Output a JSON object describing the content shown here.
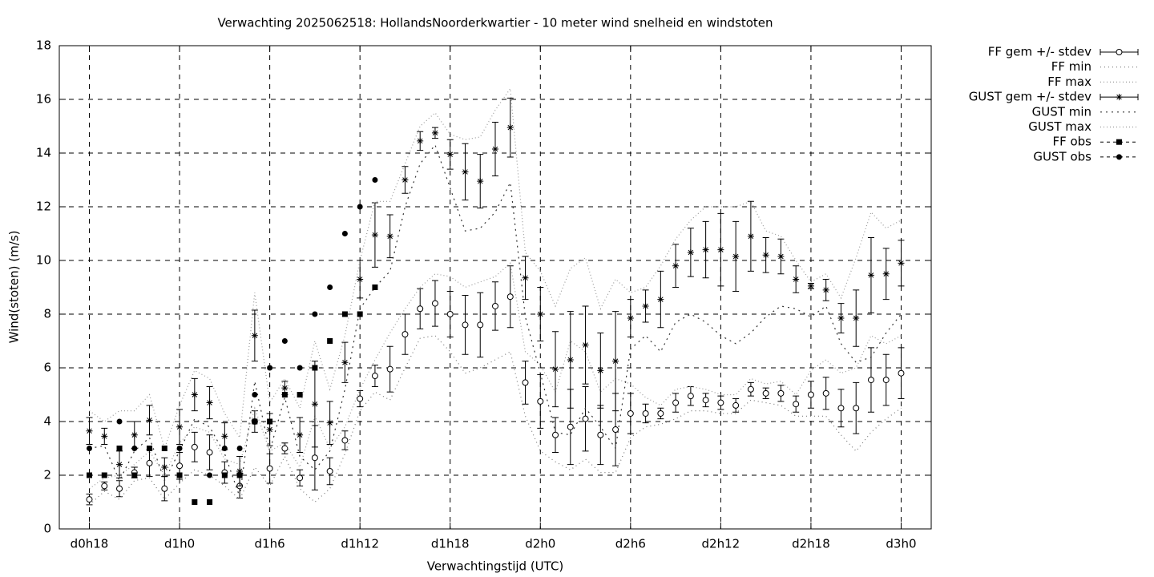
{
  "chart_data": {
    "type": "errorbar",
    "title": "Verwachting 2025062518: HollandsNoorderkwartier - 10 meter wind snelheid en windstoten",
    "xlabel": "Verwachtingstijd (UTC)",
    "ylabel": "Wind(stoten) (m/s)",
    "xlim": [
      16,
      74
    ],
    "ylim": [
      0,
      18
    ],
    "xticks": [
      {
        "value": 18,
        "label": "d0h18"
      },
      {
        "value": 24,
        "label": "d1h0"
      },
      {
        "value": 30,
        "label": "d1h6"
      },
      {
        "value": 36,
        "label": "d1h12"
      },
      {
        "value": 42,
        "label": "d1h18"
      },
      {
        "value": 48,
        "label": "d2h0"
      },
      {
        "value": 54,
        "label": "d2h6"
      },
      {
        "value": 60,
        "label": "d2h12"
      },
      {
        "value": 66,
        "label": "d2h18"
      },
      {
        "value": 72,
        "label": "d3h0"
      }
    ],
    "yticks": [
      0,
      2,
      4,
      6,
      8,
      10,
      12,
      14,
      16,
      18
    ],
    "grid": true,
    "legend": "outside-right-top",
    "x": [
      18,
      19,
      20,
      21,
      22,
      23,
      24,
      25,
      26,
      27,
      28,
      29,
      30,
      31,
      32,
      33,
      34,
      35,
      36,
      37,
      38,
      39,
      40,
      41,
      42,
      43,
      44,
      45,
      46,
      47,
      48,
      49,
      50,
      51,
      52,
      53,
      54,
      55,
      56,
      57,
      58,
      59,
      60,
      61,
      62,
      63,
      64,
      65,
      66,
      67,
      68,
      69,
      70,
      71,
      72
    ],
    "series": [
      {
        "name": "FF gem +/- stdev",
        "style": "errorbar",
        "marker": "open-circle",
        "color": "#000000",
        "values": [
          1.1,
          1.6,
          1.5,
          2.1,
          2.45,
          1.5,
          2.35,
          3.05,
          2.85,
          2.1,
          1.6,
          4.0,
          2.25,
          3.0,
          1.9,
          2.65,
          2.15,
          3.3,
          4.85,
          5.7,
          5.95,
          7.25,
          8.2,
          8.4,
          8.0,
          7.6,
          7.6,
          8.3,
          8.65,
          5.45,
          4.75,
          3.5,
          3.8,
          4.1,
          3.5,
          3.7,
          4.3,
          4.3,
          4.3,
          4.7,
          4.95,
          4.8,
          4.7,
          4.6,
          5.2,
          5.05,
          5.05,
          4.65,
          5.0,
          5.05,
          4.5,
          4.5,
          5.55,
          5.55,
          5.8
        ],
        "errors": [
          0.2,
          0.15,
          0.3,
          0.2,
          0.5,
          0.45,
          0.5,
          0.55,
          0.65,
          0.4,
          0.45,
          0.4,
          0.55,
          0.2,
          0.3,
          1.2,
          0.5,
          0.35,
          0.3,
          0.4,
          0.85,
          0.75,
          0.75,
          0.85,
          0.85,
          1.1,
          1.2,
          0.9,
          1.15,
          0.8,
          1.0,
          0.65,
          1.4,
          1.2,
          1.1,
          1.35,
          0.75,
          0.35,
          0.2,
          0.35,
          0.35,
          0.25,
          0.25,
          0.25,
          0.25,
          0.2,
          0.3,
          0.3,
          0.5,
          0.6,
          0.7,
          0.95,
          1.2,
          0.95,
          0.95
        ]
      },
      {
        "name": "FF min",
        "style": "line",
        "dash": "1 4",
        "color": "#777777",
        "values": [
          0.9,
          1.4,
          1.1,
          1.8,
          1.9,
          1.1,
          1.7,
          2.2,
          2.0,
          1.6,
          1.1,
          2.3,
          1.6,
          2.7,
          1.5,
          1.0,
          1.5,
          2.8,
          4.4,
          5.1,
          4.8,
          6.0,
          7.1,
          7.2,
          6.6,
          5.8,
          6.0,
          6.3,
          6.6,
          4.2,
          2.9,
          2.5,
          2.2,
          2.6,
          2.1,
          2.1,
          3.4,
          3.8,
          3.9,
          4.1,
          4.4,
          4.4,
          4.3,
          4.3,
          4.8,
          4.7,
          4.6,
          4.2,
          4.2,
          4.2,
          3.5,
          2.9,
          3.6,
          4.1,
          4.5
        ]
      },
      {
        "name": "FF max",
        "style": "line",
        "dash": "1 3",
        "color": "#999999",
        "values": [
          1.5,
          1.9,
          2.0,
          2.4,
          2.9,
          2.0,
          3.2,
          3.8,
          3.6,
          2.6,
          2.4,
          4.5,
          2.9,
          3.2,
          2.3,
          4.2,
          3.0,
          3.8,
          5.2,
          6.3,
          7.3,
          8.2,
          9.0,
          9.5,
          9.4,
          9.0,
          9.2,
          9.4,
          9.9,
          6.6,
          6.1,
          5.1,
          7.0,
          6.6,
          5.1,
          5.6,
          5.4,
          4.9,
          4.6,
          5.2,
          5.3,
          5.2,
          5.0,
          5.0,
          5.6,
          5.4,
          5.5,
          5.0,
          5.9,
          6.3,
          5.8,
          6.0,
          7.2,
          6.9,
          7.2
        ]
      },
      {
        "name": "GUST gem +/- stdev",
        "style": "errorbar",
        "marker": "star",
        "color": "#000000",
        "values": [
          3.65,
          3.45,
          2.4,
          3.5,
          4.05,
          2.3,
          3.8,
          5.0,
          4.7,
          3.45,
          2.15,
          7.2,
          3.7,
          5.25,
          3.5,
          4.65,
          3.95,
          6.2,
          9.3,
          10.95,
          10.9,
          13.0,
          14.45,
          14.75,
          13.95,
          13.3,
          12.95,
          14.15,
          14.95,
          9.35,
          8.0,
          5.95,
          6.3,
          6.85,
          5.9,
          6.25,
          7.85,
          8.3,
          8.55,
          9.8,
          10.3,
          10.4,
          10.4,
          10.15,
          10.9,
          10.2,
          10.15,
          9.3,
          9.05,
          8.9,
          7.85,
          7.85,
          9.45,
          9.5,
          9.9
        ],
        "errors": [
          0.5,
          0.3,
          0.5,
          0.5,
          0.55,
          0.35,
          0.65,
          0.6,
          0.6,
          0.5,
          0.55,
          0.95,
          0.6,
          0.25,
          0.65,
          1.6,
          0.8,
          0.75,
          0.7,
          1.2,
          0.8,
          0.5,
          0.35,
          0.2,
          0.55,
          1.05,
          1.0,
          1.0,
          1.1,
          0.8,
          1.0,
          1.4,
          1.8,
          1.45,
          1.4,
          1.85,
          0.7,
          0.6,
          1.05,
          0.8,
          0.9,
          1.05,
          1.35,
          1.3,
          1.3,
          0.65,
          0.65,
          0.5,
          0.1,
          0.4,
          0.55,
          1.05,
          1.4,
          0.95,
          0.85
        ]
      },
      {
        "name": "GUST min",
        "style": "line",
        "dash": "2 5",
        "color": "#333333",
        "values": [
          3.0,
          3.1,
          1.8,
          2.9,
          3.4,
          1.8,
          2.9,
          4.1,
          3.8,
          2.8,
          1.2,
          5.5,
          2.9,
          4.9,
          2.7,
          2.2,
          2.9,
          5.2,
          8.2,
          9.0,
          9.6,
          12.0,
          13.6,
          14.3,
          12.7,
          11.1,
          11.2,
          11.8,
          12.9,
          7.9,
          5.8,
          3.6,
          3.5,
          4.5,
          3.8,
          3.0,
          6.7,
          7.2,
          6.6,
          7.7,
          8.0,
          7.7,
          7.2,
          6.9,
          7.3,
          7.9,
          8.3,
          8.2,
          7.9,
          8.3,
          6.9,
          6.2,
          6.4,
          7.3,
          8.0
        ]
      },
      {
        "name": "GUST max",
        "style": "line",
        "dash": "1 3",
        "color": "#999999",
        "values": [
          4.4,
          4.0,
          4.4,
          4.4,
          5.0,
          3.0,
          4.6,
          5.9,
          5.6,
          4.3,
          3.4,
          8.8,
          4.7,
          5.6,
          4.5,
          7.0,
          5.2,
          7.2,
          10.0,
          12.2,
          12.2,
          13.6,
          15.0,
          15.5,
          14.7,
          14.5,
          14.6,
          15.6,
          16.4,
          10.3,
          9.6,
          8.3,
          9.7,
          10.1,
          8.2,
          9.3,
          8.8,
          9.0,
          9.8,
          10.8,
          11.5,
          12.0,
          12.0,
          12.0,
          12.2,
          11.1,
          10.9,
          10.0,
          9.2,
          9.5,
          8.6,
          10.1,
          11.8,
          11.2,
          11.5
        ]
      },
      {
        "name": "FF obs",
        "style": "points",
        "marker": "square",
        "color": "#000000",
        "values": [
          2,
          2,
          3,
          2,
          3,
          3,
          2,
          1,
          1,
          2,
          2,
          4,
          4,
          5,
          5,
          6,
          7,
          8,
          8,
          9,
          null,
          null,
          null,
          null,
          null,
          null,
          null,
          null,
          null,
          null,
          null,
          null,
          null,
          null,
          null,
          null,
          null,
          null,
          null,
          null,
          null,
          null,
          null,
          null,
          null,
          null,
          null,
          null,
          null,
          null,
          null,
          null,
          null,
          null,
          null
        ]
      },
      {
        "name": "GUST obs",
        "style": "points",
        "marker": "circle",
        "color": "#000000",
        "values": [
          3,
          null,
          4,
          3,
          3,
          null,
          3,
          null,
          2,
          3,
          3,
          5,
          6,
          7,
          6,
          8,
          9,
          11,
          12,
          13,
          null,
          null,
          null,
          null,
          null,
          null,
          null,
          null,
          null,
          null,
          null,
          null,
          null,
          null,
          null,
          null,
          null,
          null,
          null,
          null,
          null,
          null,
          null,
          null,
          null,
          null,
          null,
          null,
          null,
          null,
          null,
          null,
          null,
          null,
          null
        ]
      }
    ]
  }
}
